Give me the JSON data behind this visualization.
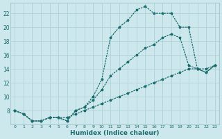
{
  "title": "",
  "xlabel": "Humidex (Indice chaleur)",
  "ylabel": "",
  "bg_color": "#cce8ed",
  "grid_color": "#aacdd4",
  "line_color": "#1a6b6b",
  "xlim": [
    -0.5,
    23.5
  ],
  "ylim": [
    6,
    23.5
  ],
  "yticks": [
    8,
    10,
    12,
    14,
    16,
    18,
    20,
    22
  ],
  "xticks": [
    0,
    1,
    2,
    3,
    4,
    5,
    6,
    7,
    8,
    9,
    10,
    11,
    12,
    13,
    14,
    15,
    16,
    17,
    18,
    19,
    20,
    21,
    22,
    23
  ],
  "series": [
    {
      "x": [
        0,
        1,
        2,
        3,
        4,
        5,
        6,
        7,
        8,
        9,
        10,
        11,
        12,
        13,
        14,
        15,
        16,
        17,
        18,
        19,
        20,
        21,
        22,
        23
      ],
      "y": [
        8,
        7.5,
        6.5,
        6.5,
        7,
        7,
        7,
        7.5,
        8,
        8.5,
        9,
        9.5,
        10,
        10.5,
        11,
        11.5,
        12,
        12.5,
        13,
        13.5,
        14,
        14,
        14,
        14.5
      ]
    },
    {
      "x": [
        0,
        1,
        2,
        3,
        4,
        5,
        6,
        7,
        8,
        9,
        10,
        11,
        12,
        13,
        14,
        15,
        16,
        17,
        18,
        19,
        20,
        21,
        22,
        23
      ],
      "y": [
        8,
        7.5,
        6.5,
        6.5,
        7,
        7,
        6.5,
        8,
        8.5,
        10,
        12.5,
        18.5,
        20,
        21,
        22.5,
        23,
        22,
        22,
        22,
        20,
        20,
        14,
        13.5,
        14.5
      ]
    },
    {
      "x": [
        0,
        1,
        2,
        3,
        4,
        5,
        6,
        7,
        8,
        9,
        10,
        11,
        12,
        13,
        14,
        15,
        16,
        17,
        18,
        19,
        20,
        21,
        22,
        23
      ],
      "y": [
        8,
        7.5,
        6.5,
        6.5,
        7,
        7,
        6.5,
        8,
        8.5,
        9.5,
        11,
        13,
        14,
        15,
        16,
        17,
        17.5,
        18.5,
        19,
        18.5,
        14.5,
        14,
        13.5,
        14.5
      ]
    }
  ]
}
